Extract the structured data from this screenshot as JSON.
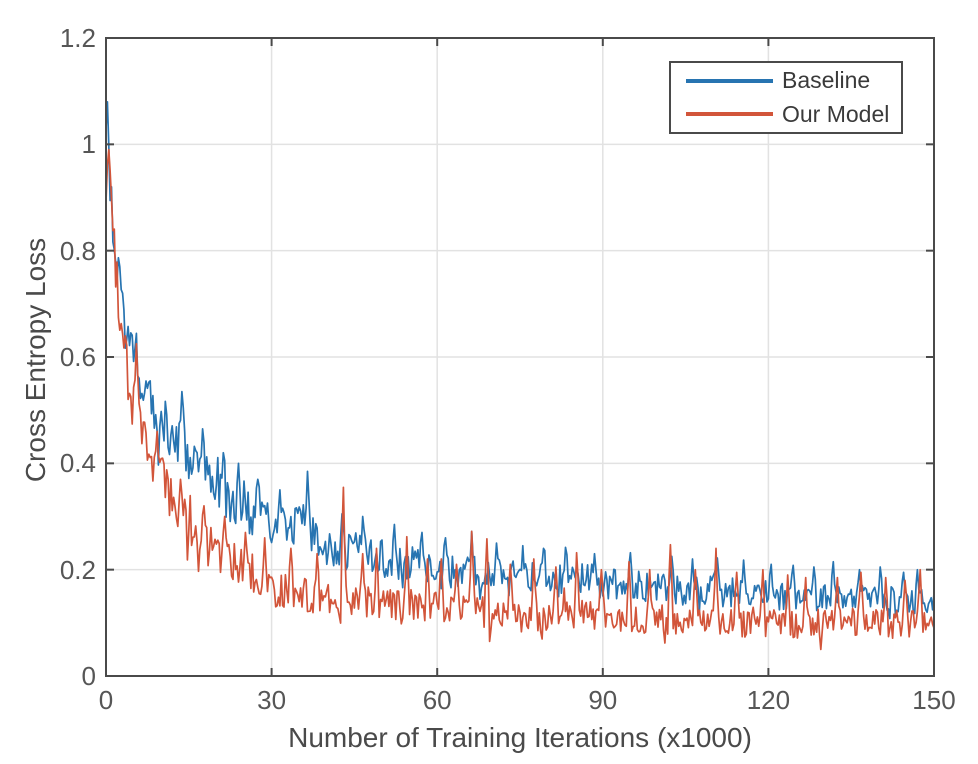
{
  "chart_data": {
    "type": "line",
    "title": "",
    "xlabel": "Number of Training Iterations (x1000)",
    "ylabel": "Cross Entropy Loss",
    "xlim": [
      0,
      150
    ],
    "ylim": [
      0,
      1.2
    ],
    "xticks": [
      0,
      30,
      60,
      90,
      120,
      150
    ],
    "yticks": [
      0,
      0.2,
      0.4,
      0.6,
      0.8,
      1,
      1.2
    ],
    "grid": true,
    "legend_position": "top-right-inside",
    "sample_step": 0.25,
    "colors": {
      "axis": "#4a4a4a",
      "grid": "#e2e2e2",
      "tick_label": "#565656",
      "axis_label": "#4a4a4a",
      "legend_text": "#3a3a3a",
      "background": "#ffffff"
    },
    "series": [
      {
        "name": "Baseline",
        "color": "#2774b1",
        "seed": 20,
        "line_width": 1.7,
        "trend": [
          [
            0,
            1.0
          ],
          [
            0.6,
            0.93
          ],
          [
            1,
            0.88
          ],
          [
            1.5,
            0.83
          ],
          [
            2,
            0.78
          ],
          [
            3,
            0.68
          ],
          [
            4,
            0.63
          ],
          [
            5,
            0.6
          ],
          [
            6,
            0.57
          ],
          [
            8,
            0.52
          ],
          [
            10,
            0.48
          ],
          [
            12,
            0.455
          ],
          [
            14,
            0.44
          ],
          [
            16,
            0.41
          ],
          [
            18,
            0.39
          ],
          [
            20,
            0.37
          ],
          [
            22,
            0.34
          ],
          [
            25,
            0.32
          ],
          [
            28,
            0.3
          ],
          [
            30,
            0.285
          ],
          [
            33,
            0.265
          ],
          [
            36,
            0.285
          ],
          [
            38,
            0.26
          ],
          [
            40,
            0.25
          ],
          [
            44,
            0.235
          ],
          [
            48,
            0.225
          ],
          [
            52,
            0.215
          ],
          [
            56,
            0.21
          ],
          [
            60,
            0.2
          ],
          [
            65,
            0.195
          ],
          [
            70,
            0.188
          ],
          [
            75,
            0.182
          ],
          [
            80,
            0.182
          ],
          [
            85,
            0.19
          ],
          [
            90,
            0.175
          ],
          [
            95,
            0.172
          ],
          [
            100,
            0.168
          ],
          [
            105,
            0.162
          ],
          [
            110,
            0.16
          ],
          [
            115,
            0.156
          ],
          [
            120,
            0.152
          ],
          [
            125,
            0.15
          ],
          [
            130,
            0.15
          ],
          [
            135,
            0.147
          ],
          [
            140,
            0.145
          ],
          [
            145,
            0.141
          ],
          [
            150,
            0.137
          ]
        ],
        "noise_amp": [
          [
            0,
            0.035
          ],
          [
            2,
            0.05
          ],
          [
            5,
            0.045
          ],
          [
            10,
            0.05
          ],
          [
            15,
            0.055
          ],
          [
            20,
            0.05
          ],
          [
            30,
            0.045
          ],
          [
            40,
            0.042
          ],
          [
            60,
            0.036
          ],
          [
            90,
            0.031
          ],
          [
            120,
            0.028
          ],
          [
            150,
            0.026
          ]
        ],
        "spikes": [
          [
            0.35,
            1.08
          ],
          [
            3.0,
            0.72
          ],
          [
            8.0,
            0.555
          ],
          [
            13.7,
            0.535
          ],
          [
            17.4,
            0.465
          ],
          [
            21.3,
            0.42
          ],
          [
            24.0,
            0.4
          ],
          [
            27.5,
            0.37
          ],
          [
            31.5,
            0.35
          ],
          [
            36.6,
            0.385
          ],
          [
            42.8,
            0.305
          ],
          [
            46.5,
            0.3
          ],
          [
            52.3,
            0.285
          ],
          [
            57.2,
            0.27
          ],
          [
            61.5,
            0.26
          ],
          [
            66.3,
            0.272
          ],
          [
            70.8,
            0.25
          ],
          [
            75.5,
            0.245
          ],
          [
            79.3,
            0.24
          ],
          [
            83.2,
            0.242
          ],
          [
            88.6,
            0.23
          ],
          [
            95.1,
            0.232
          ],
          [
            102.4,
            0.225
          ],
          [
            106.3,
            0.22
          ],
          [
            110.8,
            0.222
          ],
          [
            115.4,
            0.218
          ],
          [
            120.6,
            0.21
          ],
          [
            124.6,
            0.208
          ],
          [
            128.3,
            0.205
          ],
          [
            131.8,
            0.215
          ],
          [
            136.4,
            0.2
          ],
          [
            140.2,
            0.205
          ],
          [
            144.5,
            0.195
          ],
          [
            147.1,
            0.2
          ]
        ]
      },
      {
        "name": "Our Model",
        "color": "#d2553a",
        "seed": 77,
        "line_width": 1.7,
        "trend": [
          [
            0,
            0.9
          ],
          [
            0.5,
            0.95
          ],
          [
            1,
            0.86
          ],
          [
            1.5,
            0.8
          ],
          [
            2,
            0.73
          ],
          [
            3,
            0.63
          ],
          [
            4,
            0.56
          ],
          [
            5,
            0.51
          ],
          [
            6,
            0.475
          ],
          [
            8,
            0.42
          ],
          [
            10,
            0.375
          ],
          [
            12,
            0.335
          ],
          [
            14,
            0.305
          ],
          [
            16,
            0.275
          ],
          [
            18,
            0.252
          ],
          [
            20,
            0.238
          ],
          [
            22,
            0.222
          ],
          [
            25,
            0.202
          ],
          [
            28,
            0.185
          ],
          [
            30,
            0.168
          ],
          [
            33,
            0.158
          ],
          [
            36,
            0.152
          ],
          [
            40,
            0.143
          ],
          [
            45,
            0.147
          ],
          [
            50,
            0.138
          ],
          [
            55,
            0.132
          ],
          [
            60,
            0.128
          ],
          [
            65,
            0.126
          ],
          [
            70,
            0.117
          ],
          [
            75,
            0.112
          ],
          [
            80,
            0.112
          ],
          [
            85,
            0.118
          ],
          [
            90,
            0.11
          ],
          [
            95,
            0.11
          ],
          [
            100,
            0.106
          ],
          [
            105,
            0.106
          ],
          [
            110,
            0.104
          ],
          [
            115,
            0.101
          ],
          [
            120,
            0.1
          ],
          [
            125,
            0.099
          ],
          [
            130,
            0.096
          ],
          [
            135,
            0.1
          ],
          [
            140,
            0.1
          ],
          [
            145,
            0.096
          ],
          [
            150,
            0.1
          ]
        ],
        "noise_amp": [
          [
            0,
            0.03
          ],
          [
            2,
            0.05
          ],
          [
            5,
            0.05
          ],
          [
            10,
            0.046
          ],
          [
            20,
            0.04
          ],
          [
            30,
            0.036
          ],
          [
            50,
            0.031
          ],
          [
            90,
            0.028
          ],
          [
            150,
            0.027
          ]
        ],
        "spikes": [
          [
            0.45,
            0.99
          ],
          [
            5.6,
            0.625
          ],
          [
            9.2,
            0.46
          ],
          [
            13.4,
            0.37
          ],
          [
            17.8,
            0.32
          ],
          [
            21.5,
            0.3
          ],
          [
            25.3,
            0.27
          ],
          [
            28.7,
            0.26
          ],
          [
            33.4,
            0.24
          ],
          [
            38.2,
            0.23
          ],
          [
            43.1,
            0.355
          ],
          [
            46.4,
            0.23
          ],
          [
            49.0,
            0.24
          ],
          [
            54.6,
            0.262
          ],
          [
            58.3,
            0.22
          ],
          [
            60.8,
            0.22
          ],
          [
            63.5,
            0.21
          ],
          [
            66.2,
            0.272
          ],
          [
            69.1,
            0.258
          ],
          [
            73.2,
            0.21
          ],
          [
            77.4,
            0.22
          ],
          [
            81.6,
            0.205
          ],
          [
            85.3,
            0.232
          ],
          [
            89.8,
            0.2
          ],
          [
            94.8,
            0.215
          ],
          [
            98.6,
            0.2
          ],
          [
            102.3,
            0.247
          ],
          [
            106.8,
            0.2
          ],
          [
            110.6,
            0.24
          ],
          [
            114.2,
            0.195
          ],
          [
            118.9,
            0.2
          ],
          [
            123.5,
            0.19
          ],
          [
            126.8,
            0.185
          ],
          [
            129.4,
            0.05
          ],
          [
            132.6,
            0.185
          ],
          [
            136.7,
            0.195
          ],
          [
            141.3,
            0.185
          ],
          [
            144.8,
            0.18
          ],
          [
            147.5,
            0.2
          ]
        ]
      }
    ]
  }
}
